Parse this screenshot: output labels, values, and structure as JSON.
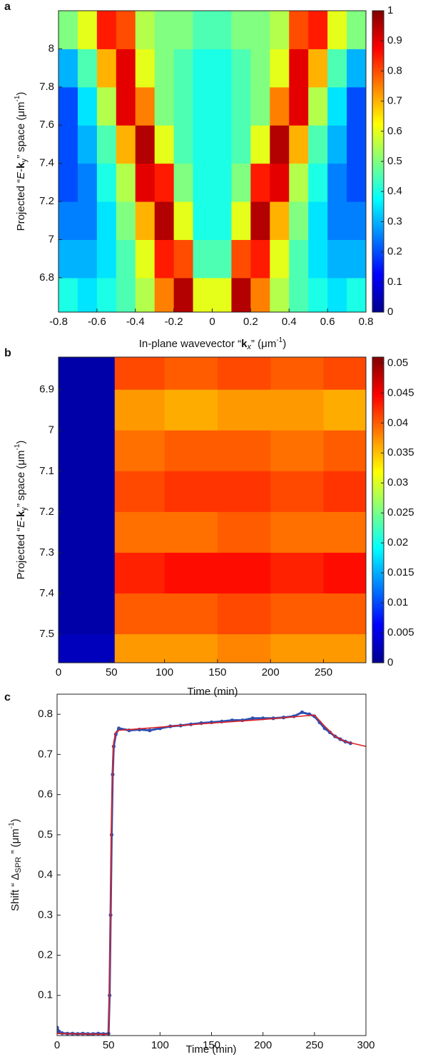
{
  "chart_data": [
    {
      "type": "heatmap",
      "panel": "a",
      "xlabel": [
        "In-plane wavevector “",
        "k",
        "x",
        "” (μm",
        "-1",
        ")"
      ],
      "ylabel": [
        "Projected “",
        "E",
        "-",
        "k",
        "y",
        "” space (μm",
        "-1",
        ")"
      ],
      "xlim": [
        -0.8,
        0.8
      ],
      "ylim": [
        6.62,
        8.2
      ],
      "xticks": [
        -0.8,
        -0.6,
        -0.4,
        -0.2,
        0,
        0.2,
        0.4,
        0.6,
        0.8
      ],
      "yticks": [
        6.8,
        7,
        7.2,
        7.4,
        7.6,
        7.8,
        8
      ],
      "xbins": [
        -0.8,
        -0.7,
        -0.6,
        -0.5,
        -0.4,
        -0.3,
        -0.2,
        -0.1,
        0,
        0.1,
        0.2,
        0.3,
        0.4,
        0.5,
        0.6,
        0.7,
        0.8
      ],
      "ybins": [
        6.62,
        6.8,
        7,
        7.2,
        7.4,
        7.6,
        7.8,
        8,
        8.2
      ],
      "z": [
        [
          0.4,
          0.35,
          0.4,
          0.45,
          0.55,
          0.75,
          0.95,
          0.6,
          0.6,
          0.95,
          0.75,
          0.55,
          0.45,
          0.4,
          0.35,
          0.4
        ],
        [
          0.3,
          0.3,
          0.35,
          0.45,
          0.6,
          0.85,
          0.8,
          0.45,
          0.45,
          0.8,
          0.85,
          0.6,
          0.45,
          0.35,
          0.3,
          0.3
        ],
        [
          0.25,
          0.25,
          0.35,
          0.5,
          0.7,
          0.95,
          0.6,
          0.4,
          0.4,
          0.6,
          0.95,
          0.7,
          0.5,
          0.35,
          0.25,
          0.25
        ],
        [
          0.2,
          0.25,
          0.4,
          0.55,
          0.9,
          0.85,
          0.5,
          0.4,
          0.4,
          0.5,
          0.85,
          0.9,
          0.55,
          0.4,
          0.25,
          0.2
        ],
        [
          0.2,
          0.3,
          0.45,
          0.7,
          0.95,
          0.6,
          0.45,
          0.4,
          0.4,
          0.45,
          0.6,
          0.95,
          0.7,
          0.45,
          0.3,
          0.2
        ],
        [
          0.2,
          0.35,
          0.55,
          0.9,
          0.75,
          0.5,
          0.45,
          0.4,
          0.4,
          0.45,
          0.5,
          0.75,
          0.9,
          0.55,
          0.35,
          0.2
        ],
        [
          0.3,
          0.45,
          0.7,
          0.9,
          0.6,
          0.5,
          0.45,
          0.4,
          0.4,
          0.45,
          0.5,
          0.6,
          0.9,
          0.7,
          0.45,
          0.3
        ],
        [
          0.5,
          0.6,
          0.85,
          0.8,
          0.55,
          0.5,
          0.5,
          0.45,
          0.45,
          0.5,
          0.5,
          0.55,
          0.8,
          0.85,
          0.6,
          0.5
        ]
      ],
      "clim": [
        0,
        1
      ],
      "cticks": [
        0,
        0.1,
        0.2,
        0.3,
        0.4,
        0.5,
        0.6,
        0.7,
        0.8,
        0.9,
        1
      ]
    },
    {
      "type": "heatmap",
      "panel": "b",
      "xlabel": [
        "Time (min)"
      ],
      "ylabel": [
        "Projected “",
        "E",
        "-",
        "k",
        "y",
        "” space (μm",
        "-1",
        ")"
      ],
      "xlim": [
        0,
        290
      ],
      "ylim": [
        7.57,
        6.82
      ],
      "xticks": [
        0,
        50,
        100,
        150,
        200,
        250
      ],
      "yticks": [
        6.9,
        7,
        7.1,
        7.2,
        7.3,
        7.4,
        7.5
      ],
      "xbins": [
        0,
        53,
        100,
        150,
        200,
        250,
        290
      ],
      "ybins": [
        6.82,
        6.9,
        7,
        7.1,
        7.2,
        7.3,
        7.4,
        7.5,
        7.57
      ],
      "z": [
        [
          0.002,
          0.041,
          0.04,
          0.041,
          0.04,
          0.041,
          0.04
        ],
        [
          0.002,
          0.037,
          0.036,
          0.037,
          0.037,
          0.036,
          0.035
        ],
        [
          0.002,
          0.039,
          0.04,
          0.04,
          0.039,
          0.04,
          0.039
        ],
        [
          0.002,
          0.041,
          0.042,
          0.042,
          0.041,
          0.042,
          0.041
        ],
        [
          0.002,
          0.039,
          0.039,
          0.04,
          0.039,
          0.039,
          0.038
        ],
        [
          0.002,
          0.043,
          0.044,
          0.044,
          0.043,
          0.044,
          0.042
        ],
        [
          0.002,
          0.04,
          0.04,
          0.041,
          0.04,
          0.04,
          0.039
        ],
        [
          0.003,
          0.037,
          0.037,
          0.038,
          0.037,
          0.037,
          0.036
        ]
      ],
      "clim": [
        0,
        0.051
      ],
      "cticks": [
        0,
        0.005,
        0.01,
        0.015,
        0.02,
        0.025,
        0.03,
        0.035,
        0.04,
        0.045,
        0.05
      ]
    },
    {
      "type": "line",
      "panel": "c",
      "xlabel": [
        "Time (min)"
      ],
      "ylabel": [
        "Shift “ Δ",
        "SPR",
        " ” (μm",
        "-1",
        ")"
      ],
      "xlim": [
        0,
        300
      ],
      "ylim": [
        0,
        0.85
      ],
      "xticks": [
        0,
        50,
        100,
        150,
        200,
        250,
        300
      ],
      "yticks": [
        0.1,
        0.2,
        0.3,
        0.4,
        0.5,
        0.6,
        0.7,
        0.8
      ],
      "series": [
        {
          "color": "#2f4fb0",
          "marker": true,
          "x": [
            0,
            2,
            5,
            10,
            15,
            20,
            25,
            30,
            35,
            40,
            45,
            50,
            51,
            52,
            53,
            54,
            55,
            57,
            60,
            70,
            80,
            90,
            100,
            110,
            120,
            130,
            140,
            150,
            160,
            170,
            180,
            190,
            200,
            210,
            220,
            230,
            238,
            245,
            250,
            255,
            260,
            265,
            270,
            275,
            280,
            285
          ],
          "values": [
            0.02,
            0.01,
            0.006,
            0.005,
            0.005,
            0.004,
            0.005,
            0.004,
            0.004,
            0.005,
            0.004,
            0.005,
            0.1,
            0.3,
            0.5,
            0.65,
            0.72,
            0.75,
            0.765,
            0.76,
            0.762,
            0.76,
            0.765,
            0.77,
            0.772,
            0.775,
            0.778,
            0.78,
            0.782,
            0.785,
            0.785,
            0.79,
            0.79,
            0.79,
            0.792,
            0.795,
            0.805,
            0.8,
            0.795,
            0.78,
            0.765,
            0.755,
            0.745,
            0.738,
            0.732,
            0.728
          ]
        },
        {
          "color": "#e02020",
          "marker": false,
          "x": [
            0,
            1,
            50,
            51,
            52,
            53,
            54,
            55,
            57,
            60,
            100,
            150,
            200,
            250,
            260,
            270,
            280,
            290,
            300
          ],
          "values": [
            0.01,
            0.005,
            0.003,
            0.1,
            0.35,
            0.55,
            0.68,
            0.73,
            0.755,
            0.76,
            0.768,
            0.778,
            0.787,
            0.798,
            0.77,
            0.745,
            0.732,
            0.726,
            0.72
          ]
        }
      ]
    }
  ]
}
